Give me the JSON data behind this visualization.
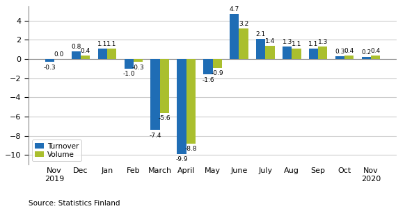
{
  "months": [
    "Nov\n2019",
    "Dec",
    "Jan",
    "Feb",
    "March",
    "April",
    "May",
    "June",
    "July",
    "Aug",
    "Sep",
    "Oct",
    "Nov\n2020"
  ],
  "turnover": [
    -0.3,
    0.8,
    1.1,
    -1.0,
    -7.4,
    -9.9,
    -1.6,
    4.7,
    2.1,
    1.3,
    1.1,
    0.3,
    0.2
  ],
  "volume": [
    0.0,
    0.4,
    1.1,
    -0.3,
    -5.6,
    -8.8,
    -0.9,
    3.2,
    1.4,
    1.1,
    1.3,
    0.4,
    0.4
  ],
  "turnover_color": "#1F6DB5",
  "volume_color": "#AABF2E",
  "ylim": [
    -11,
    5.5
  ],
  "yticks": [
    -10,
    -8,
    -6,
    -4,
    -2,
    0,
    2,
    4
  ],
  "bar_width": 0.35,
  "source": "Source: Statistics Finland",
  "legend_labels": [
    "Turnover",
    "Volume"
  ],
  "grid_color": "#cccccc",
  "bg_color": "#ffffff",
  "label_fontsize": 6.5,
  "tick_fontsize": 8
}
